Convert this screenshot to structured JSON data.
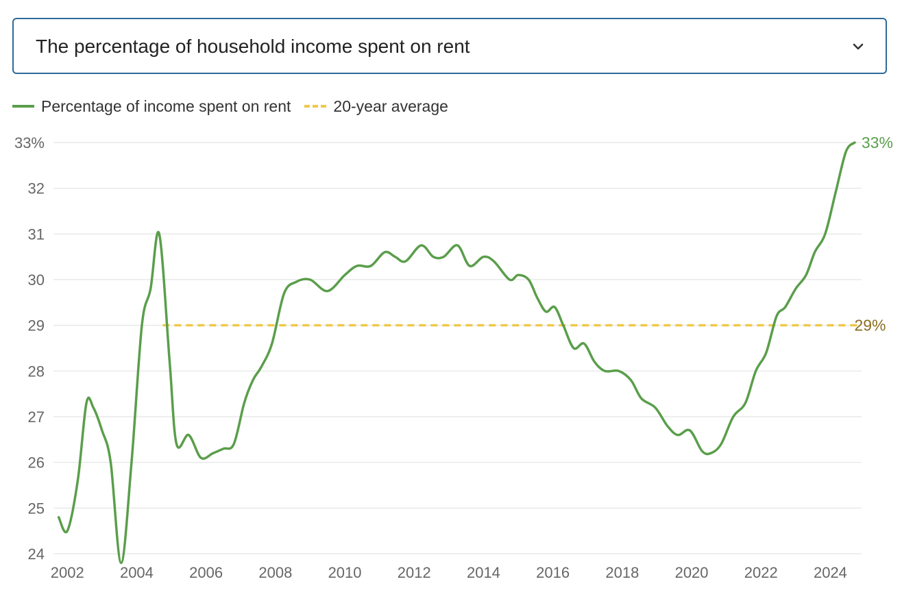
{
  "dropdown": {
    "selected_label": "The percentage of household income spent on rent",
    "icon": "chevron-down-icon"
  },
  "legend": {
    "series_label": "Percentage of income spent on rent",
    "average_label": "20-year average"
  },
  "colors": {
    "series": "#5a9e4b",
    "average": "#f0c94a",
    "average_label": "#8a6d1f",
    "grid": "#e3e3e3",
    "border": "#2e6a99"
  },
  "chart_data": {
    "type": "line",
    "title": "",
    "xlabel": "",
    "ylabel": "",
    "xlim": [
      2001.6,
      2024.9
    ],
    "ylim": [
      24,
      33
    ],
    "y_ticks": [
      "24",
      "25",
      "26",
      "27",
      "28",
      "29",
      "30",
      "31",
      "32",
      "33%"
    ],
    "x_ticks": [
      "2002",
      "2004",
      "2006",
      "2008",
      "2010",
      "2012",
      "2014",
      "2016",
      "2018",
      "2020",
      "2022",
      "2024"
    ],
    "grid": true,
    "legend_position": "top-left",
    "series": [
      {
        "name": "Percentage of income spent on rent",
        "x": [
          2001.75,
          2002.0,
          2002.3,
          2002.55,
          2002.75,
          2003.0,
          2003.25,
          2003.55,
          2003.85,
          2004.15,
          2004.4,
          2004.65,
          2004.95,
          2005.15,
          2005.5,
          2005.85,
          2006.2,
          2006.5,
          2006.8,
          2007.1,
          2007.35,
          2007.6,
          2007.9,
          2008.25,
          2008.6,
          2009.0,
          2009.5,
          2010.0,
          2010.35,
          2010.75,
          2011.15,
          2011.45,
          2011.75,
          2012.2,
          2012.55,
          2012.85,
          2013.25,
          2013.6,
          2014.0,
          2014.3,
          2014.75,
          2015.0,
          2015.3,
          2015.55,
          2015.8,
          2016.05,
          2016.3,
          2016.6,
          2016.9,
          2017.2,
          2017.5,
          2017.9,
          2018.25,
          2018.55,
          2018.95,
          2019.3,
          2019.6,
          2019.95,
          2020.3,
          2020.55,
          2020.85,
          2021.2,
          2021.55,
          2021.85,
          2022.15,
          2022.45,
          2022.7,
          2023.0,
          2023.3,
          2023.55,
          2023.85,
          2024.15,
          2024.45,
          2024.7
        ],
        "values": [
          24.8,
          24.5,
          25.6,
          27.3,
          27.2,
          26.7,
          26.0,
          23.8,
          26.0,
          29.0,
          29.8,
          31.0,
          28.2,
          26.4,
          26.6,
          26.1,
          26.2,
          26.3,
          26.4,
          27.3,
          27.8,
          28.1,
          28.6,
          29.7,
          29.95,
          30.0,
          29.75,
          30.1,
          30.3,
          30.3,
          30.6,
          30.5,
          30.4,
          30.75,
          30.5,
          30.5,
          30.75,
          30.3,
          30.5,
          30.4,
          30.0,
          30.1,
          30.0,
          29.6,
          29.3,
          29.4,
          29.0,
          28.5,
          28.6,
          28.2,
          28.0,
          28.0,
          27.8,
          27.4,
          27.2,
          26.8,
          26.6,
          26.7,
          26.25,
          26.2,
          26.4,
          27.0,
          27.3,
          28.0,
          28.4,
          29.2,
          29.4,
          29.8,
          30.1,
          30.6,
          31.0,
          31.9,
          32.8,
          33.0
        ]
      },
      {
        "name": "20-year average",
        "x": [
          2004.75,
          2024.85
        ],
        "values": [
          29,
          29
        ],
        "style": "dashed"
      }
    ],
    "annotations": [
      {
        "text": "33%",
        "x": 2024.7,
        "y": 33
      },
      {
        "text": "29%",
        "x": 2024.85,
        "y": 29
      }
    ]
  }
}
